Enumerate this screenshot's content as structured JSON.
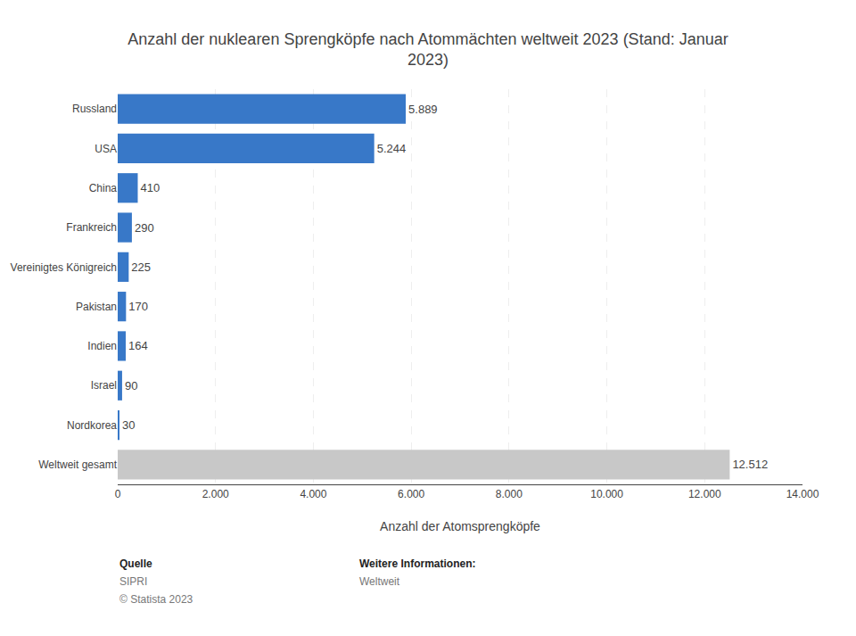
{
  "chart_data": {
    "type": "bar",
    "orientation": "horizontal",
    "title": "Anzahl der nuklearen Sprengköpfe nach Atommächten weltweit 2023 (Stand: Januar\n2023)",
    "categories": [
      "Russland",
      "USA",
      "China",
      "Frankreich",
      "Vereinigtes Königreich",
      "Pakistan",
      "Indien",
      "Israel",
      "Nordkorea",
      "Weltweit gesamt"
    ],
    "values": [
      5889,
      5244,
      410,
      290,
      225,
      170,
      164,
      90,
      30,
      12512
    ],
    "value_labels": [
      "5.889",
      "5.244",
      "410",
      "290",
      "225",
      "170",
      "164",
      "90",
      "30",
      "12.512"
    ],
    "data_labels": true,
    "colors": [
      "#3878C8",
      "#3878C8",
      "#3878C8",
      "#3878C8",
      "#3878C8",
      "#3878C8",
      "#3878C8",
      "#3878C8",
      "#3878C8",
      "#C8C8C8"
    ],
    "xlabel": "Anzahl der Atomsprengköpfe",
    "xlim": [
      0,
      14000
    ],
    "xticks": [
      0,
      {
        "value": 2000,
        "label": "2.000"
      },
      {
        "value": 4000,
        "label": "4.000"
      },
      {
        "value": 6000,
        "label": "6.000"
      },
      {
        "value": 8000,
        "label": "8.000"
      },
      {
        "value": 10000,
        "label": "10.000"
      },
      {
        "value": 12000,
        "label": "12.000"
      },
      {
        "value": 14000,
        "label": "14.000"
      }
    ],
    "grid": true,
    "annotations": [
      [
        "Quelle",
        "SIPRI",
        "© Statista 2023"
      ],
      [
        "Weitere Informationen:",
        "Weltweit"
      ]
    ]
  }
}
